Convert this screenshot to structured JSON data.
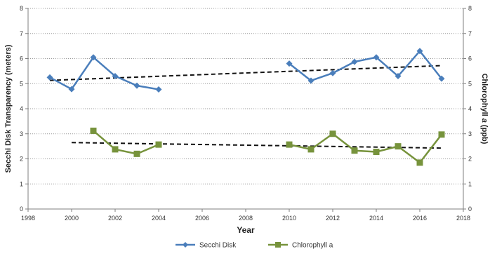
{
  "chart_data": {
    "type": "line",
    "title": "",
    "xlabel": "Year",
    "ylabel_left": "Secchi Disk Transparency (meters)",
    "ylabel_right_prefix": "Chlorophyll ",
    "ylabel_right_italic": "a",
    "ylabel_right_suffix": " (ppb)",
    "xlim": [
      1998,
      2018
    ],
    "ylim": [
      0,
      8
    ],
    "y2lim": [
      0,
      8
    ],
    "x_ticks": [
      "1998",
      "2000",
      "2002",
      "2004",
      "2006",
      "2008",
      "2010",
      "2012",
      "2014",
      "2016",
      "2018"
    ],
    "y_ticks": [
      "0",
      "1",
      "2",
      "3",
      "4",
      "5",
      "6",
      "7",
      "8"
    ],
    "y2_ticks": [
      "0",
      "1",
      "2",
      "3",
      "4",
      "5",
      "6",
      "7",
      "8"
    ],
    "grid": "horizontal-dotted",
    "legend_position": "bottom",
    "series": [
      {
        "name": "Secchi Disk",
        "axis": "left",
        "color": "#4A7EBB",
        "marker": "diamond",
        "segments": [
          [
            [
              1999,
              5.25
            ],
            [
              2000,
              4.78
            ],
            [
              2001,
              6.05
            ],
            [
              2002,
              5.3
            ],
            [
              2003,
              4.92
            ],
            [
              2004,
              4.77
            ]
          ],
          [
            [
              2010,
              5.8
            ],
            [
              2011,
              5.12
            ],
            [
              2012,
              5.42
            ],
            [
              2013,
              5.87
            ],
            [
              2014,
              6.05
            ],
            [
              2015,
              5.3
            ],
            [
              2016,
              6.3
            ],
            [
              2017,
              5.2
            ]
          ]
        ]
      },
      {
        "name": "Chlorophyll a",
        "axis": "right",
        "color": "#77933C",
        "marker": "square",
        "segments": [
          [
            [
              2001,
              3.12
            ],
            [
              2002,
              2.38
            ],
            [
              2003,
              2.2
            ],
            [
              2004,
              2.57
            ]
          ],
          [
            [
              2010,
              2.57
            ],
            [
              2011,
              2.38
            ],
            [
              2012,
              3.0
            ],
            [
              2013,
              2.33
            ],
            [
              2014,
              2.28
            ],
            [
              2015,
              2.5
            ],
            [
              2016,
              1.85
            ],
            [
              2017,
              2.97
            ]
          ]
        ]
      }
    ],
    "trendlines": [
      {
        "name": "secchi-trend",
        "color": "#111111",
        "points": [
          [
            1999,
            5.13
          ],
          [
            2017,
            5.72
          ]
        ]
      },
      {
        "name": "chlorophyll-trend",
        "color": "#111111",
        "points": [
          [
            2000,
            2.65
          ],
          [
            2017,
            2.43
          ]
        ]
      }
    ]
  }
}
